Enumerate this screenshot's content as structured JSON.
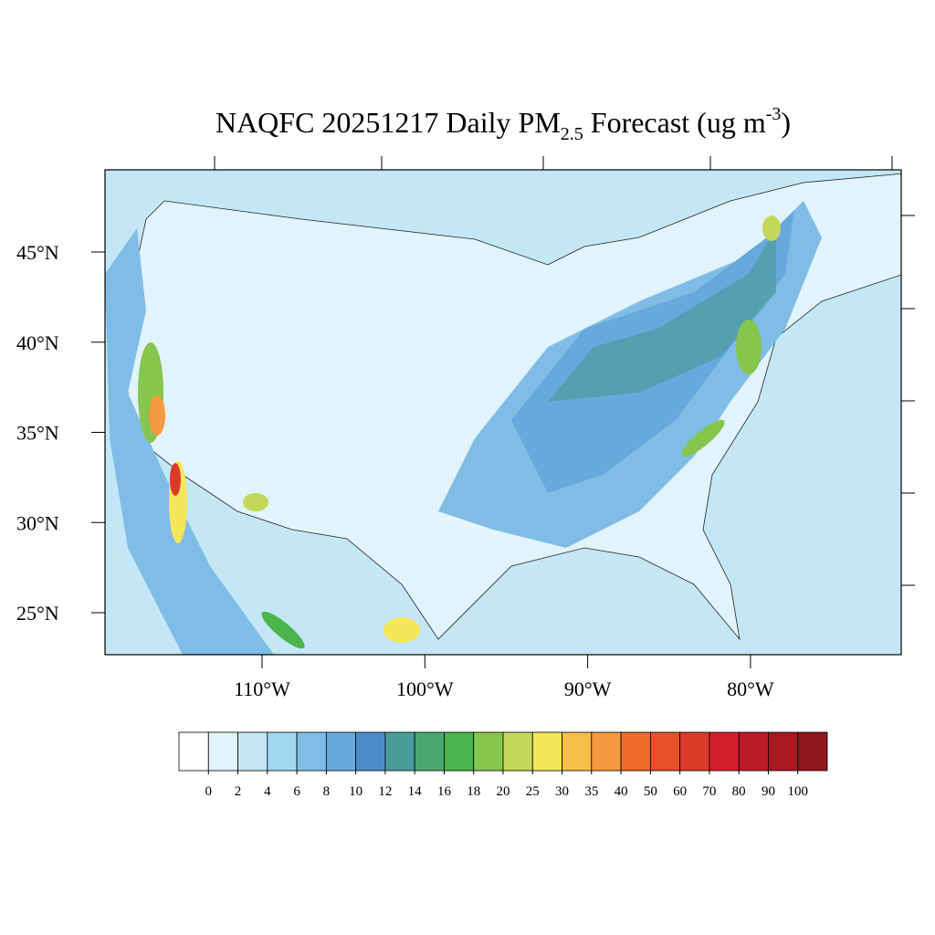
{
  "title": {
    "main": "NAQFC 20251217 Daily PM",
    "sub": "2.5",
    "unit": " Forecast (ug m",
    "sup": "-3",
    "close": ")"
  },
  "map": {
    "lat_ticks": [
      {
        "value": 45,
        "label": "45°N"
      },
      {
        "value": 40,
        "label": "40°N"
      },
      {
        "value": 35,
        "label": "35°N"
      },
      {
        "value": 30,
        "label": "30°N"
      },
      {
        "value": 25,
        "label": "25°N"
      }
    ],
    "lon_ticks": [
      {
        "value": -110,
        "label": "110°W"
      },
      {
        "value": -100,
        "label": "100°W"
      },
      {
        "value": -90,
        "label": "90°W"
      },
      {
        "value": -80,
        "label": "80°W"
      }
    ]
  },
  "colorbar": {
    "levels": [
      0,
      2,
      4,
      6,
      8,
      10,
      12,
      14,
      16,
      18,
      20,
      25,
      30,
      35,
      40,
      50,
      60,
      70,
      80,
      90,
      100
    ],
    "colors": [
      "#ffffff",
      "#e1f3fb",
      "#c3e7f7",
      "#a0d8f2",
      "#7fbde6",
      "#67a9dd",
      "#4a8ccb",
      "#4a9c9c",
      "#4aa86e",
      "#4ab54a",
      "#86c54e",
      "#c3d858",
      "#f6e65a",
      "#f7bf4a",
      "#f59a3e",
      "#f06a2b",
      "#e6512b",
      "#dc3a28",
      "#d11f2b",
      "#bc1a27",
      "#a8191f",
      "#8f161a"
    ]
  }
}
